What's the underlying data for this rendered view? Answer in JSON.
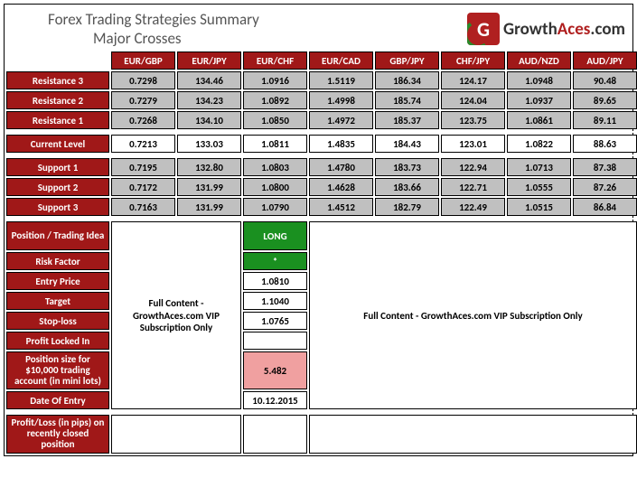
{
  "header": {
    "title": "Forex Trading Strategies Summary",
    "subtitle": "Major Crosses",
    "logo_text_1": "Growth",
    "logo_text_2": "Aces",
    "logo_text_3": ".com"
  },
  "pairs": [
    "EUR/GBP",
    "EUR/JPY",
    "EUR/CHF",
    "EUR/CAD",
    "GBP/JPY",
    "CHF/JPY",
    "AUD/NZD",
    "AUD/JPY"
  ],
  "rows": {
    "res3": {
      "label": "Resistance 3",
      "cells": [
        "0.7298",
        "134.46",
        "1.0916",
        "1.5119",
        "186.34",
        "124.17",
        "1.0948",
        "90.48"
      ]
    },
    "res2": {
      "label": "Resistance 2",
      "cells": [
        "0.7279",
        "134.23",
        "1.0892",
        "1.4998",
        "185.74",
        "124.04",
        "1.0937",
        "89.65"
      ]
    },
    "res1": {
      "label": "Resistance 1",
      "cells": [
        "0.7268",
        "134.10",
        "1.0850",
        "1.4972",
        "185.37",
        "123.75",
        "1.0861",
        "89.11"
      ]
    },
    "cur": {
      "label": "Current Level",
      "cells": [
        "0.7213",
        "133.03",
        "1.0811",
        "1.4835",
        "184.43",
        "123.01",
        "1.0822",
        "88.63"
      ]
    },
    "sup1": {
      "label": "Support 1",
      "cells": [
        "0.7195",
        "132.80",
        "1.0803",
        "1.4780",
        "183.73",
        "122.94",
        "1.0713",
        "87.38"
      ]
    },
    "sup2": {
      "label": "Support 2",
      "cells": [
        "0.7172",
        "131.99",
        "1.0800",
        "1.4628",
        "183.66",
        "122.71",
        "1.0555",
        "87.26"
      ]
    },
    "sup3": {
      "label": "Support 3",
      "cells": [
        "0.7163",
        "131.99",
        "1.0790",
        "1.4512",
        "182.79",
        "122.49",
        "1.0515",
        "86.84"
      ]
    }
  },
  "idea": {
    "position_label": "Position / Trading Idea",
    "risk_label": "Risk Factor",
    "entry_label": "Entry Price",
    "target_label": "Target",
    "stop_label": "Stop-loss",
    "profit_locked_label": "Profit Locked In",
    "pos_size_label": "Position size for $10,000 trading account (in mini lots)",
    "date_label": "Date Of Entry",
    "pl_label": "Profit/Loss (in pips) on recently closed position",
    "long": "LONG",
    "risk": "*",
    "entry": "1.0810",
    "target": "1.1040",
    "stop": "1.0765",
    "profit_locked": "",
    "pos_size": "5.482",
    "date": "10.12.2015",
    "vip_left": "Full Content - GrowthAces.com VIP Subscription Only",
    "vip_right": "Full Content - GrowthAces.com VIP Subscription Only"
  },
  "colors": {
    "red": "#a01818",
    "gray": "#c0c0c0",
    "green": "#1a9020",
    "pink": "#f0a0a0"
  }
}
